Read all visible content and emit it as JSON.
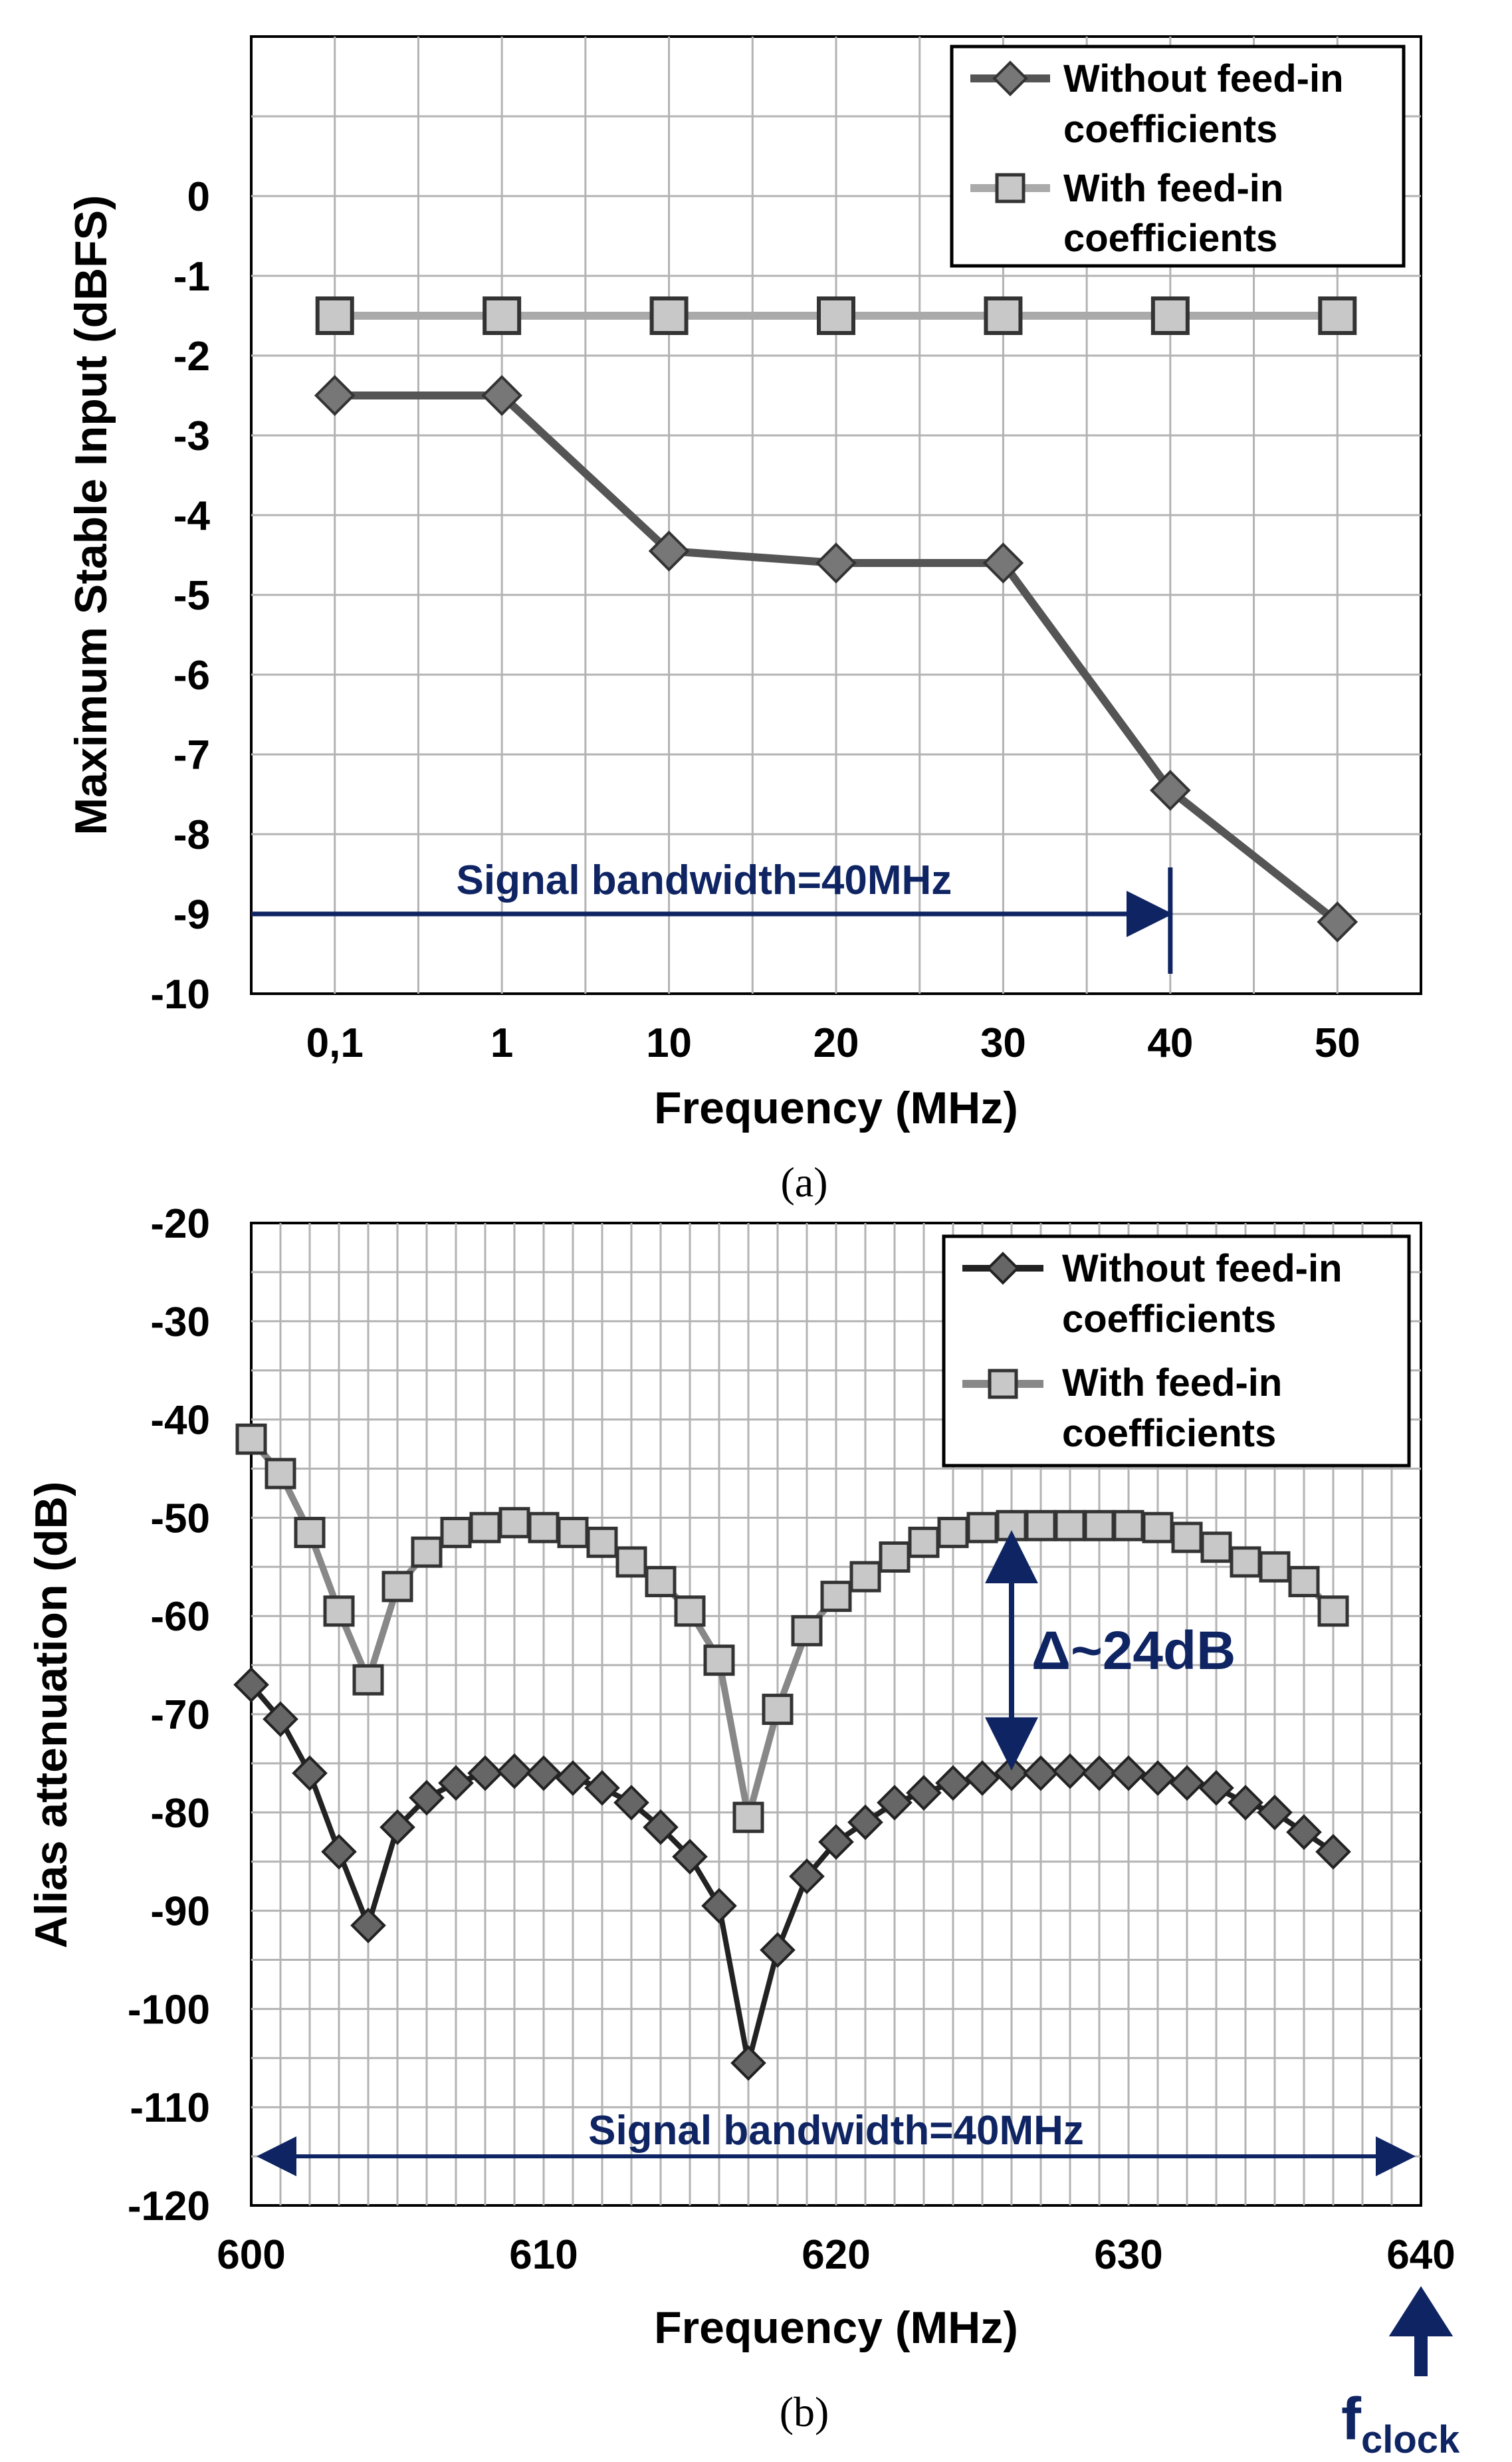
{
  "colors": {
    "navy": "#0f2463",
    "series_without": "#555555",
    "series_without_b": "#222222",
    "series_with": "#aaaaaa",
    "series_with_b": "#888888",
    "grid": "#b3b3b3",
    "marker_fill": "#c8c8c8"
  },
  "chart_data": [
    {
      "id": "a",
      "type": "line",
      "caption": "(a)",
      "xlabel": "Frequency (MHz)",
      "ylabel": "Maximum Stable Input (dBFS)",
      "categories": [
        "0,1",
        "1",
        "10",
        "20",
        "30",
        "40",
        "50"
      ],
      "ylim": [
        -10,
        2
      ],
      "yticks": [
        0,
        -1,
        -2,
        -3,
        -4,
        -5,
        -6,
        -7,
        -8,
        -9,
        -10
      ],
      "grid": true,
      "legend_position": "top-right",
      "series": [
        {
          "name": "Without feed-in coefficients",
          "legend_lines": [
            "Without feed-in",
            "coefficients"
          ],
          "marker": "diamond",
          "values": [
            -2.5,
            -2.5,
            -4.45,
            -4.6,
            -4.6,
            -7.45,
            -9.1
          ]
        },
        {
          "name": "With feed-in coefficients",
          "legend_lines": [
            "With feed-in",
            "coefficients"
          ],
          "marker": "square",
          "values": [
            -1.5,
            -1.5,
            -1.5,
            -1.5,
            -1.5,
            -1.5,
            -1.5
          ]
        }
      ],
      "annotations": {
        "bandwidth_label": "Signal bandwidth=40MHz",
        "bandwidth_end_category": "40",
        "bandwidth_y": -9
      }
    },
    {
      "id": "b",
      "type": "line",
      "caption": "(b)",
      "xlabel": "Frequency (MHz)",
      "ylabel": "Alias attenuation (dB)",
      "xlim": [
        600,
        640
      ],
      "xticks": [
        600,
        610,
        620,
        630,
        640
      ],
      "ylim": [
        -120,
        -20
      ],
      "yticks": [
        -20,
        -30,
        -40,
        -50,
        -60,
        -70,
        -80,
        -90,
        -100,
        -110,
        -120
      ],
      "grid": true,
      "legend_position": "top-right",
      "x": [
        600,
        601,
        602,
        603,
        604,
        605,
        606,
        607,
        608,
        609,
        610,
        611,
        612,
        613,
        614,
        615,
        616,
        617,
        618,
        619,
        620,
        621,
        622,
        623,
        624,
        625,
        626,
        627,
        628,
        629,
        630,
        631,
        632,
        633,
        634,
        635,
        636,
        637
      ],
      "series": [
        {
          "name": "Without feed-in coefficients",
          "legend_lines": [
            "Without feed-in",
            "coefficients"
          ],
          "marker": "diamond",
          "values": [
            -67,
            -70.5,
            -76,
            -84,
            -91.5,
            -81.5,
            -78.5,
            -77,
            -76,
            -75.8,
            -76,
            -76.5,
            -77.5,
            -79,
            -81.5,
            -84.5,
            -89.5,
            -105.5,
            -94,
            -86.5,
            -83,
            -81,
            -79,
            -78,
            -77,
            -76.5,
            -76,
            -76,
            -75.8,
            -76,
            -76,
            -76.5,
            -77,
            -77.5,
            -79,
            -80,
            -82,
            -84
          ]
        },
        {
          "name": "With feed-in coefficients",
          "legend_lines": [
            "With feed-in",
            "coefficients"
          ],
          "marker": "square",
          "values": [
            -42,
            -45.5,
            -51.5,
            -59.5,
            -66.5,
            -57,
            -53.5,
            -51.5,
            -51,
            -50.5,
            -51,
            -51.5,
            -52.5,
            -54.5,
            -56.5,
            -59.5,
            -64.5,
            -80.5,
            -69.5,
            -61.5,
            -58,
            -56,
            -54,
            -52.5,
            -51.5,
            -51,
            -50.8,
            -50.8,
            -50.8,
            -50.8,
            -50.8,
            -51,
            -52,
            -53,
            -54.5,
            -55,
            -56.5,
            -59.5
          ]
        }
      ],
      "annotations": {
        "bandwidth_label": "Signal bandwidth=40MHz",
        "bandwidth_y": -115,
        "delta_label": "Δ~24dB",
        "delta_x": 626,
        "delta_y_top": -51,
        "delta_y_bottom": -76,
        "fclock_main": "f",
        "fclock_sub": "clock"
      }
    }
  ]
}
